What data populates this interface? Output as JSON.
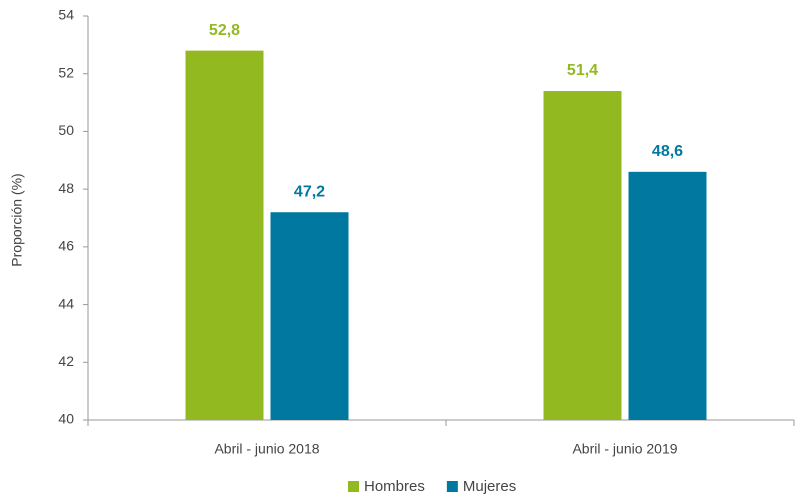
{
  "chart_data": {
    "type": "bar",
    "categories": [
      "Abril - junio 2018",
      "Abril - junio 2019"
    ],
    "series": [
      {
        "name": "Hombres",
        "color": "#93b921",
        "values": [
          52.8,
          51.4
        ],
        "value_labels": [
          "52,8",
          "51,4"
        ]
      },
      {
        "name": "Mujeres",
        "color": "#0078a0",
        "values": [
          47.2,
          48.6
        ],
        "value_labels": [
          "47,2",
          "48,6"
        ]
      }
    ],
    "y_label": "Proporción (%)",
    "ylim": [
      40,
      54
    ],
    "yticks": [
      40,
      42,
      44,
      46,
      48,
      50,
      52,
      54
    ],
    "legend": "bottom"
  }
}
